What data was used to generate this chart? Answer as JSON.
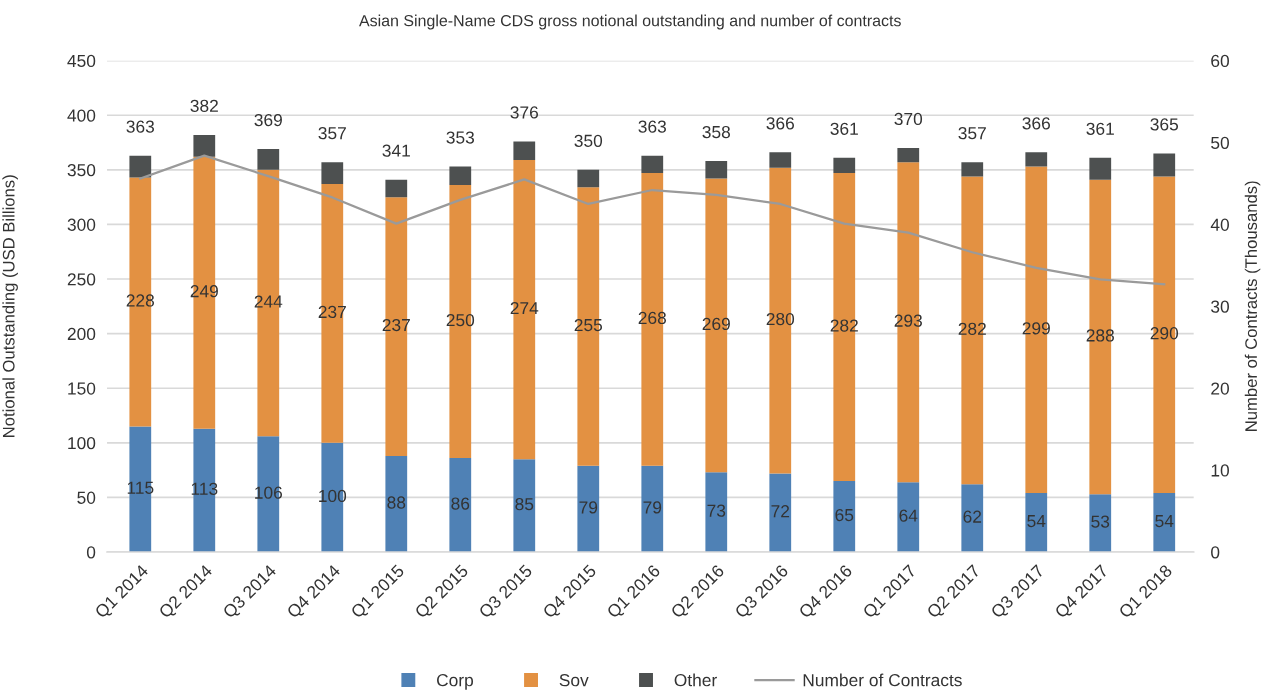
{
  "chart_data": {
    "type": "bar",
    "title": "Asian Single-Name CDS gross notional outstanding and number of contracts",
    "ylabel": "Notional Outstanding (USD Billions)",
    "y2label": "Number of Contracts (Thousands)",
    "categories": [
      "Q1 2014",
      "Q2 2014",
      "Q3 2014",
      "Q4 2014",
      "Q1 2015",
      "Q2 2015",
      "Q3 2015",
      "Q4 2015",
      "Q1 2016",
      "Q2 2016",
      "Q3 2016",
      "Q4 2016",
      "Q1 2017",
      "Q2 2017",
      "Q3 2017",
      "Q4 2017",
      "Q1 2018"
    ],
    "stacked": true,
    "series": [
      {
        "name": "Corp",
        "color": "#4f81b5",
        "values": [
          115,
          113,
          106,
          100,
          88,
          86,
          85,
          79,
          79,
          73,
          72,
          65,
          64,
          62,
          54,
          53,
          54
        ],
        "value_labels": [
          "115",
          "113",
          "106",
          "100",
          "88",
          "86",
          "85",
          "79",
          "79",
          "73",
          "72",
          "65",
          "64",
          "62",
          "54",
          "53",
          "54"
        ]
      },
      {
        "name": "Sov",
        "color": "#e39142",
        "values": [
          228,
          249,
          244,
          237,
          237,
          250,
          274,
          255,
          268,
          269,
          280,
          282,
          293,
          282,
          299,
          288,
          290
        ],
        "value_labels": [
          "228",
          "249",
          "244",
          "237",
          "237",
          "250",
          "274",
          "255",
          "268",
          "269",
          "280",
          "282",
          "293",
          "282",
          "299",
          "288",
          "290"
        ]
      },
      {
        "name": "Other",
        "color": "#4d5050",
        "values": [
          20,
          20,
          19,
          20,
          16,
          17,
          17,
          16,
          16,
          16,
          14,
          14,
          13,
          13,
          13,
          20,
          21
        ]
      },
      {
        "name": "Number of Contracts",
        "type": "line",
        "axis": "y2",
        "color": "#9a9a9a",
        "values": [
          45.6,
          48.4,
          45.9,
          43.3,
          40.1,
          43.0,
          45.5,
          42.5,
          44.2,
          43.6,
          42.5,
          40.1,
          39.0,
          36.6,
          34.7,
          33.3,
          32.7
        ]
      }
    ],
    "totals": [
      "363",
      "382",
      "369",
      "357",
      "341",
      "353",
      "376",
      "350",
      "363",
      "358",
      "366",
      "361",
      "370",
      "357",
      "366",
      "361",
      "365"
    ],
    "ylim": [
      0,
      450
    ],
    "yticks": [
      0,
      50,
      100,
      150,
      200,
      250,
      300,
      350,
      400,
      450
    ],
    "y2lim": [
      0,
      60
    ],
    "y2ticks": [
      0,
      10,
      20,
      30,
      40,
      50,
      60
    ],
    "grid": "y",
    "legend": "bottom"
  }
}
